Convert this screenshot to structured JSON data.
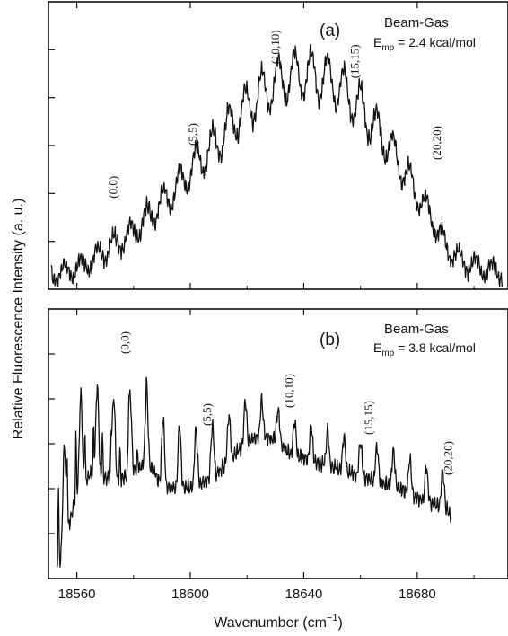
{
  "figure": {
    "ylabel": "Relative Fluorescence Intensity (a. u.)",
    "xlabel_main": "Wavenumber (cm",
    "xlabel_sup": "−1",
    "xlabel_close": ")"
  },
  "chart_data": [
    {
      "type": "line",
      "panel_label": "(a)",
      "legend_title": "Beam-Gas",
      "energy_symbol": "E",
      "energy_subscript": "mp",
      "energy_value": " = 2.4 kcal/mol",
      "xlim": [
        18550,
        18712
      ],
      "ylim": [
        0,
        6
      ],
      "x_ticks": [
        18560,
        18600,
        18640,
        18680
      ],
      "grid": false,
      "series": [
        {
          "x": [
            18551,
            18555,
            18560,
            18565,
            18570,
            18575,
            18580,
            18585,
            18590,
            18595,
            18600,
            18605,
            18610,
            18615,
            18620,
            18625,
            18630,
            18635,
            18640,
            18645,
            18650,
            18655,
            18660,
            18665,
            18670,
            18675,
            18680,
            18685,
            18690,
            18695,
            18700,
            18705,
            18710
          ],
          "y": [
            0.3,
            0.35,
            0.45,
            0.6,
            0.8,
            1.0,
            1.2,
            1.5,
            1.8,
            2.1,
            2.5,
            2.8,
            3.1,
            3.5,
            3.8,
            4.1,
            4.3,
            4.45,
            4.5,
            4.45,
            4.35,
            4.1,
            3.8,
            3.4,
            3.0,
            2.5,
            2.0,
            1.5,
            0.9,
            0.6,
            0.5,
            0.4,
            0.35
          ]
        }
      ],
      "annotations": [
        {
          "text": "(0,0)",
          "x": 18573,
          "y": 1.9
        },
        {
          "text": "(5,5)",
          "x": 18601,
          "y": 3.0
        },
        {
          "text": "(10,10)",
          "x": 18630,
          "y": 4.7
        },
        {
          "text": "(15,15)",
          "x": 18658,
          "y": 4.4
        },
        {
          "text": "(20,20)",
          "x": 18687,
          "y": 2.7
        }
      ]
    },
    {
      "type": "line",
      "panel_label": "(b)",
      "legend_title": "Beam-Gas",
      "energy_symbol": "E",
      "energy_subscript": "mp",
      "energy_value": " = 3.8 kcal/mol",
      "xlim": [
        18550,
        18712
      ],
      "ylim": [
        0,
        6
      ],
      "x_ticks": [
        18560,
        18600,
        18640,
        18680
      ],
      "x_tick_labels": [
        "18560",
        "18600",
        "18640",
        "18680"
      ],
      "grid": false,
      "series": [
        {
          "x": [
            18553,
            18556,
            18560,
            18565,
            18570,
            18575,
            18580,
            18585,
            18590,
            18595,
            18600,
            18605,
            18610,
            18615,
            18620,
            18625,
            18630,
            18635,
            18640,
            18645,
            18650,
            18655,
            18660,
            18665,
            18670,
            18675,
            18680,
            18685,
            18690,
            18692
          ],
          "y": [
            0.8,
            1.5,
            2.5,
            2.9,
            2.8,
            2.7,
            2.9,
            3.0,
            2.5,
            2.4,
            2.4,
            2.5,
            2.7,
            3.0,
            3.3,
            3.4,
            3.3,
            3.0,
            2.9,
            2.8,
            2.7,
            2.6,
            2.5,
            2.4,
            2.3,
            2.2,
            2.0,
            1.9,
            1.8,
            1.6
          ]
        }
      ],
      "annotations": [
        {
          "text": "(0,0)",
          "x": 18577,
          "y": 5.0
        },
        {
          "text": "(5,5)",
          "x": 18606,
          "y": 3.4
        },
        {
          "text": "(10,10)",
          "x": 18635,
          "y": 3.8
        },
        {
          "text": "(15,15)",
          "x": 18663,
          "y": 3.2
        },
        {
          "text": "(20,20)",
          "x": 18691,
          "y": 2.3
        }
      ]
    }
  ]
}
